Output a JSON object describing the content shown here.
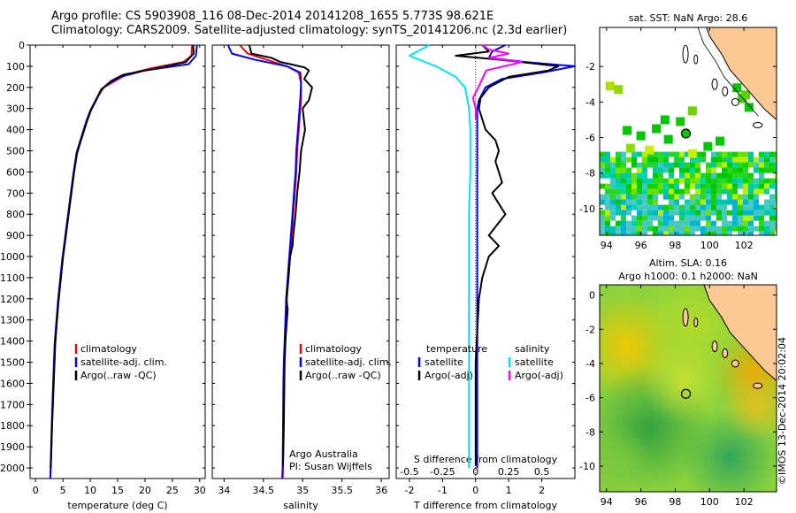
{
  "header": {
    "line1": "Argo profile: CS 5903908_116 08-Dec-2014 20141208_1655 5.773S 98.621E",
    "line2": "Climatology: CARS2009. Satellite-adjusted climatology: synTS_20141206.nc (2.3d earlier)"
  },
  "stamp": "©IMOS 13-Dec-2014 20:02:04",
  "colors": {
    "clim": "#ff0000",
    "sat": "#0000ff",
    "argo": "#000000",
    "sal_sat": "#00e5ff",
    "sal_argo": "#ff00ff",
    "land": "#fcc894"
  },
  "depth_axis": {
    "ylim": [
      0,
      2050
    ],
    "ticks": [
      0,
      100,
      200,
      300,
      400,
      500,
      600,
      700,
      800,
      900,
      1000,
      1100,
      1200,
      1300,
      1400,
      1500,
      1600,
      1700,
      1800,
      1900,
      2000
    ]
  },
  "chart_data": [
    {
      "type": "line",
      "xlabel": "temperature (deg C)",
      "xlim": [
        -1,
        31
      ],
      "xticks": [
        0,
        5,
        10,
        15,
        20,
        25,
        30
      ],
      "legend": {
        "placement": "lower-center",
        "entries": [
          "climatology",
          "satellite-adj. clim.",
          "Argo(..raw -QC)"
        ]
      },
      "series": [
        {
          "name": "climatology",
          "color": "#ff0000",
          "x": [
            28.6,
            28.5,
            27,
            21,
            16.5,
            14.5,
            12.5,
            11.2,
            10.2,
            9.4,
            8.8,
            8.2,
            7.6,
            7.0,
            6.5,
            6.0,
            5.5,
            5.0,
            4.6,
            4.2,
            3.9,
            3.6,
            3.3,
            3.0,
            2.8,
            2.7
          ],
          "y": [
            0,
            50,
            80,
            110,
            140,
            170,
            200,
            250,
            300,
            350,
            400,
            450,
            500,
            600,
            700,
            800,
            900,
            1000,
            1100,
            1200,
            1300,
            1400,
            1600,
            1800,
            2000,
            2050
          ]
        },
        {
          "name": "satellite-adj. clim.",
          "color": "#0000ff",
          "x": [
            29.5,
            29.3,
            28,
            20,
            15.5,
            13.5,
            12.0,
            11.0,
            10.0,
            9.3,
            8.7,
            8.1,
            7.5,
            6.9,
            6.4,
            5.9,
            5.4,
            4.9,
            4.5,
            4.1,
            3.8,
            3.5,
            3.2,
            2.95,
            2.75,
            2.7
          ],
          "y": [
            0,
            50,
            90,
            120,
            150,
            180,
            210,
            260,
            310,
            360,
            410,
            460,
            510,
            610,
            710,
            810,
            910,
            1010,
            1110,
            1210,
            1310,
            1410,
            1610,
            1810,
            2000,
            2050
          ]
        },
        {
          "name": "Argo(..raw -QC)",
          "color": "#000000",
          "x": [
            28.8,
            28.9,
            27.5,
            22,
            16,
            13.8,
            12.0,
            11.1,
            10.1,
            9.4,
            8.8,
            8.2,
            7.6,
            7.0,
            6.5,
            6.0,
            5.5,
            5.0,
            4.6,
            4.2,
            3.9,
            3.6,
            3.3,
            3.0,
            2.8,
            2.75
          ],
          "y": [
            0,
            40,
            80,
            110,
            140,
            170,
            210,
            260,
            310,
            360,
            410,
            460,
            510,
            610,
            710,
            810,
            910,
            1010,
            1110,
            1210,
            1310,
            1410,
            1610,
            1810,
            1980,
            2000
          ]
        }
      ]
    },
    {
      "type": "line",
      "xlabel": "salinity",
      "xlim": [
        33.85,
        36.1
      ],
      "xticks": [
        34,
        34.5,
        35,
        35.5,
        36
      ],
      "legend": {
        "placement": "lower-center",
        "entries": [
          "climatology",
          "satellite-adj. clim.",
          "Argo(..raw -QC)"
        ]
      },
      "annotations": [
        "Argo Australia",
        "PI: Susan Wijffels"
      ],
      "series": [
        {
          "name": "climatology",
          "color": "#ff0000",
          "x": [
            34.2,
            34.3,
            34.55,
            34.8,
            34.95,
            34.98,
            34.98,
            34.97,
            34.95,
            34.93,
            34.92,
            34.9,
            34.88,
            34.86,
            34.84,
            34.82,
            34.8,
            34.79,
            34.78,
            34.77,
            34.76,
            34.755,
            34.75,
            34.745
          ],
          "y": [
            0,
            40,
            70,
            100,
            130,
            180,
            250,
            300,
            400,
            500,
            600,
            700,
            800,
            900,
            1000,
            1100,
            1200,
            1300,
            1400,
            1500,
            1600,
            1800,
            2000,
            2050
          ]
        },
        {
          "name": "satellite-adj. clim.",
          "color": "#0000ff",
          "x": [
            34.05,
            34.1,
            34.4,
            34.8,
            34.97,
            34.98,
            34.97,
            34.96,
            34.94,
            34.92,
            34.91,
            34.89,
            34.87,
            34.85,
            34.83,
            34.81,
            34.79,
            34.78,
            34.77,
            34.76,
            34.755,
            34.75,
            34.745,
            34.74
          ],
          "y": [
            0,
            40,
            70,
            100,
            130,
            180,
            250,
            300,
            400,
            500,
            600,
            700,
            800,
            900,
            1000,
            1100,
            1200,
            1300,
            1400,
            1500,
            1600,
            1800,
            2000,
            2050
          ]
        },
        {
          "name": "Argo(..raw -QC)",
          "color": "#000000",
          "x": [
            34.32,
            34.35,
            34.6,
            34.72,
            35.02,
            35.08,
            35.02,
            35.12,
            35.08,
            35.0,
            35.03,
            34.98,
            34.96,
            34.93,
            34.91,
            34.88,
            34.87,
            34.84,
            34.82,
            34.79,
            34.81,
            34.8,
            34.78,
            34.77,
            34.76,
            34.75
          ],
          "y": [
            0,
            40,
            60,
            80,
            105,
            120,
            160,
            200,
            260,
            300,
            400,
            500,
            600,
            700,
            800,
            900,
            950,
            1000,
            1100,
            1200,
            1250,
            1300,
            1400,
            1500,
            1800,
            1990
          ]
        }
      ]
    },
    {
      "type": "line",
      "xlabel": "T difference from climatology",
      "xlabel_top": "S difference from climatology",
      "xlim": [
        -2.4,
        3.0
      ],
      "xticks": [
        -2,
        -1,
        0,
        1,
        2
      ],
      "xticks_top": [
        -0.5,
        -0.25,
        0,
        0.25,
        0.5
      ],
      "legend": {
        "placement": "lower-center",
        "titles": [
          "temperature",
          "salinity"
        ],
        "entries": [
          "satellite",
          "Argo(-adj)",
          "satellite",
          "Argo(-adj)"
        ]
      },
      "series": [
        {
          "name": "satellite",
          "color": "#0000ff",
          "x": [
            0.9,
            0.5,
            0.4,
            1.5,
            3.0,
            2.0,
            0.8,
            0.3,
            0.1,
            0.05,
            0.05,
            0.05,
            0.05,
            0.05,
            0.05,
            0.05,
            0.05,
            0.05
          ],
          "y": [
            0,
            30,
            60,
            80,
            100,
            130,
            160,
            200,
            260,
            300,
            400,
            600,
            800,
            1000,
            1300,
            1600,
            1900,
            2000
          ]
        },
        {
          "name": "Argo(-adj)",
          "color": "#000000",
          "x": [
            0.2,
            0.4,
            -0.6,
            0.8,
            2.5,
            2.2,
            1.0,
            0.4,
            0.15,
            0.1,
            0.3,
            0.6,
            0.7,
            0.6,
            0.7,
            0.8,
            0.5,
            0.9,
            0.4,
            0.7,
            0.4,
            0.2,
            0.1,
            0.0,
            0.0
          ],
          "y": [
            0,
            30,
            50,
            70,
            100,
            120,
            150,
            200,
            250,
            300,
            400,
            450,
            500,
            550,
            600,
            650,
            700,
            800,
            900,
            950,
            1000,
            1100,
            1200,
            1500,
            1990
          ]
        },
        {
          "name": "satellite",
          "color": "#00e5ff",
          "x": [
            -0.35,
            -0.5,
            -0.3,
            -0.15,
            -0.08,
            -0.05,
            -0.04,
            -0.04,
            -0.05,
            -0.05,
            -0.05,
            -0.05,
            -0.05
          ],
          "y": [
            0,
            50,
            100,
            150,
            200,
            300,
            400,
            600,
            800,
            1000,
            1400,
            1800,
            2000
          ]
        },
        {
          "name": "Argo(-adj)",
          "color": "#ff00ff",
          "x": [
            0.05,
            0.1,
            0.25,
            0.1,
            0.35,
            0.08,
            0.02,
            -0.02,
            0.0,
            0.0
          ],
          "y": [
            0,
            20,
            40,
            60,
            80,
            120,
            200,
            250,
            300,
            350
          ]
        }
      ]
    }
  ],
  "maps": [
    {
      "title": "sat. SST: NaN Argo: 28.6",
      "xticks": [
        94,
        96,
        98,
        100,
        102
      ],
      "yticks": [
        -2,
        -4,
        -6,
        -8,
        -10
      ],
      "lon": [
        93.6,
        103.9
      ],
      "lat": [
        -11.5,
        0.2
      ],
      "marker": {
        "lon": 98.621,
        "lat": -5.773
      }
    },
    {
      "title": "Altim. SLA: 0.16",
      "subtitle": "Argo h1000: 0.1 h2000: NaN",
      "xticks": [
        94,
        96,
        98,
        100,
        102
      ],
      "yticks": [
        0,
        -2,
        -4,
        -6,
        -8,
        -10
      ],
      "lon": [
        93.6,
        103.9
      ],
      "lat": [
        -11.5,
        0.6
      ],
      "marker": {
        "lon": 98.621,
        "lat": -5.773
      }
    }
  ]
}
